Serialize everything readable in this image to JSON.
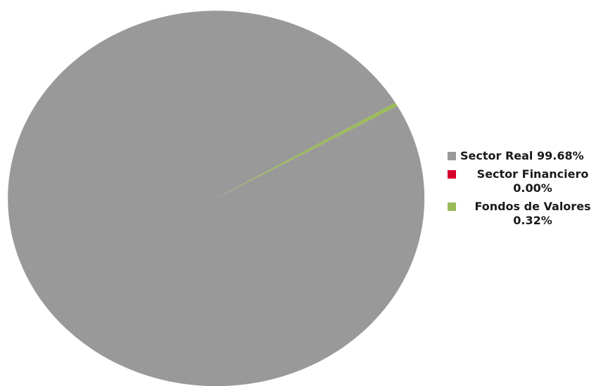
{
  "chart_data": {
    "type": "pie",
    "categories": [
      "Sector Real",
      "Sector Financiero",
      "Fondos de Valores"
    ],
    "values": [
      99.68,
      0.0,
      0.32
    ],
    "colors": [
      "#999999",
      "#d6002a",
      "#9bbb59"
    ],
    "legend": {
      "position": "right",
      "entries": [
        {
          "name": "Sector Real",
          "value_label": "99.68%",
          "color": "#999999"
        },
        {
          "name": "Sector Financiero",
          "value_label": "0.00%",
          "color": "#d6002a"
        },
        {
          "name": "Fondos de Valores",
          "value_label": "0.32%",
          "color": "#9bbb59"
        }
      ]
    }
  }
}
